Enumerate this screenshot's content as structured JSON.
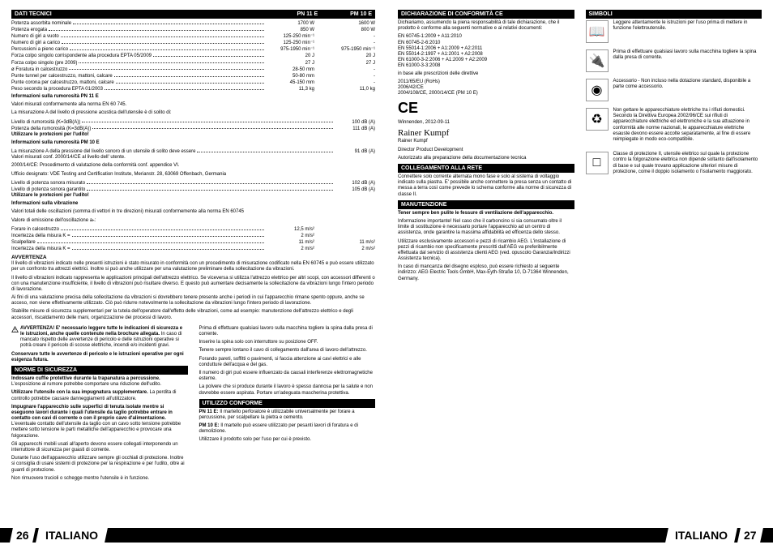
{
  "left_page": {
    "tech_header": {
      "title": "DATI TECNICI",
      "col1": "PN 11 E",
      "col2": "PM 10 E"
    },
    "specs_dual": [
      {
        "label": "Potenza assorbita nominale",
        "v1": "1700 W",
        "v2": "1600 W"
      },
      {
        "label": "Potenza erogata",
        "v1": "850 W",
        "v2": "800 W"
      },
      {
        "label": "Numero di giri a vuoto",
        "v1": "125-250 min⁻¹",
        "v2": "-"
      },
      {
        "label": "Numero di giri a carico",
        "v1": "125-250 min⁻¹",
        "v2": "-"
      },
      {
        "label": "Percussioni a pieno carico",
        "v1": "975-1950 min⁻¹",
        "v2": "975-1950 min⁻¹"
      },
      {
        "label": "Forza colpo singolo corrispondente alla procedura EPTA 05/2009",
        "v1": "20 J",
        "v2": "20 J"
      },
      {
        "label": "Forza colpo singolo (pre 2009)",
        "v1": "27 J",
        "v2": "27 J"
      },
      {
        "label": "ø Foratura in calcestruzzo",
        "v1": "28-50 mm",
        "v2": "-"
      },
      {
        "label": "Punte tunnel per calcestruzzo, mattoni, calcare",
        "v1": "50-80 mm",
        "v2": "-"
      },
      {
        "label": "Punte corona per calcestruzzo, mattoni, calcare",
        "v1": "45-150 mm",
        "v2": "-"
      },
      {
        "label": "Peso secondo la procedura EPTA 01/2003",
        "v1": "11,3 kg",
        "v2": "11,0 kg"
      }
    ],
    "noise_pn11": {
      "title": "Informazioni sulla rumorosità PN 11 E",
      "intro1": "Valori misurati conformemente alla norma EN 60 745.",
      "intro2": "La misurazione A del livello di pressione acustica dell'utensile è di solito di:",
      "rows": [
        {
          "label": "Livello di rumorosità (K=3dB(A))",
          "val": "100 dB (A)"
        },
        {
          "label": "Potenza della rumorosità (K=3dB(A))",
          "val": "111 dB (A)"
        }
      ],
      "warn": "Utilizzare le protezioni per l'udito!"
    },
    "noise_pm10": {
      "title": "Informazioni sulla rumorosità PM 10 E",
      "intro1": "La misurazione A della pressione del livello sonoro di un utensile di solito deve essere",
      "rows_a": [
        {
          "label": "",
          "val": "91 dB (A)"
        }
      ],
      "intro2": "Valori misurati conf. 2000/14/CE al livello dell' utente.",
      "intro3": "2000/14/CE: Procedimento di valutazione della conformità conf. appendice VI.",
      "intro4": "Ufficio designato: VDE Testing and Certification Institute, Merianstr. 28, 63069 Offenbach, Germania",
      "rows_b": [
        {
          "label": "Livello di potenza sonora misurato",
          "val": "102 dB (A)"
        },
        {
          "label": "Livello di potenza sonora garantito",
          "val": "105 dB (A)"
        }
      ],
      "warn": "Utilizzare le protezioni per l'udito!"
    },
    "vib": {
      "title": "Informazioni sulla vibrazione",
      "intro1": "Valori totali delle oscillazioni (somma di vettori in tre direzioni) misurati conformemente alla norma EN 60745",
      "intro2": "Valore di emissione dell'oscillazione aₕ:",
      "rows": [
        {
          "label": "Forare in calcestruzzo",
          "v1": "12,5 m/s²",
          "v2": ""
        },
        {
          "label": "Incertezza della misura K =",
          "v1": "2 m/s²",
          "v2": ""
        },
        {
          "label": "Scalpellare",
          "v1": "11 m/s²",
          "v2": "11 m/s²"
        },
        {
          "label": "Incertezza della misura K =",
          "v1": "2 m/s²",
          "v2": "2 m/s²"
        }
      ]
    },
    "avvertenza": {
      "title": "AVVERTENZA",
      "p1": "Il livello di vibrazioni indicato nelle presenti istruzioni è stato misurato in conformità con un procedimento di misurazione codificato nella EN 60745 e può essere utilizzato per un confronto tra attrezzi elettrici. Inoltre si può anche utilizzare per una valutazione preliminare della sollecitazione da vibrazioni.",
      "p2": "Il livello di vibrazioni indicato rappresenta le applicazioni principali dell'attrezzo elettrico. Se viceversa si utilizza l'attrezzo elettrico per altri scopi, con accessori differenti o con una manutenzione insufficiente, il livello di vibrazioni può risultare diverso. E questo può aumentare decisamente la sollecitazione da vibrazioni lungo l'intero periodo di lavorazione.",
      "p3": "Ai fini di una valutazione precisa della sollecitazione da vibrazioni si dovrebbero tenere presente anche i periodi in cui l'apparecchio rimane spento oppure, anche se acceso, non viene effettivamente utilizzato. Ciò può ridurre notevolmente la sollecitazione da vibrazioni lungo l'intero periodo di lavorazione.",
      "p4": "Stabilite misure di sicurezza supplementari per la tutela dell'operatore dall'effetto delle vibrazioni, come ad esempio: manutenzione dell'attrezzo elettrico e degli accessori, riscaldamento delle mani, organizzazione dei processi di lavoro."
    },
    "col_left_2": {
      "warn_title": "AVVERTENZA! E' necessario leggere tutte le indicazioni di sicurezza e le istruzioni, anche quelle contenute nella brochure allegata.",
      "warn_body": "In caso di mancato rispetto delle avvertenze di pericolo e delle istruzioni operative si potrà creare il pericolo di scosse elettriche, incendi e/o incidenti gravi.",
      "warn_keep": "Conservare tutte le avvertenze di pericolo e le istruzioni operative per ogni esigenza futura.",
      "norme_header": "NORME DI SICUREZZA",
      "n1b": "Indossare cuffie protettive durante la trapanatura a percussione.",
      "n1": "L'esposizione al rumore potrebbe comportare una riduzione dell'udito.",
      "n2b": "Utilizzare l'utensile con la sua impugnatura supplementare.",
      "n2": "La perdita di controllo potrebbe causare danneggiamenti all'utilizzatore.",
      "n3b": "Impugnare l'apparecchio sulle superfici di tenuta isolate mentre si eseguono lavori durante i quali l'utensile da taglio potrebbe entrare in contatto con cavi di corrente o con il proprio cavo d'alimentazione.",
      "n3": "L'eventuale contatto dell'utensile da taglio con un cavo sotto tensione potrebbe mettere sotto tensione le parti metalliche dell'apparecchio e provocare una folgorazione.",
      "n4": "Gli apparecchi mobili usati all'aperto devono essere collegati interponendo un interruttore di sicurezza per guasti di corrente.",
      "n5": "Durante l'uso dell'apparecchio utilizzare sempre gli occhiali di protezione. Inoltre si consiglia di usare sistemi di protezione per la respirazione e per l'udito, oltre ai guanti di protezione.",
      "n6": "Non rimuovere trucioli o schegge mentre l'utensile è in funzione."
    },
    "col_right_2": {
      "p1": "Prima di effettuare qualsiasi lavoro sulla macchina togliere la spina dalla presa di corrente.",
      "p2": "Inserire la spina solo con interruttore su posizione OFF.",
      "p3": "Tenere sempre lontano il cavo di collegamento dall'area di lavoro dell'attrezzo.",
      "p4": "Forando pareti, soffitti o pavimenti, si faccia attenzione ai cavi elettrici e alle condutture dell'acqua e del gas.",
      "p5": "Il numero di giri può essere influenzato da causali interferenze elettromagnetiche esterne.",
      "p6": "La polvere che si produce durante il lavoro è spesso dannosa per la salute e non dovrebbe essere aspirata. Portare un'adeguata mascherina protettiva.",
      "util_header": "UTILIZZO CONFORME",
      "u1b": "PN 11 E:",
      "u1": "Il martello perforatore è utilizzabile universalmente per forare a percussione, per scalpellare la pietra e cemento.",
      "u2b": "PM 10 E:",
      "u2": "Il martello può essere utilizzato per pesanti lavori di foratura e di demolizione.",
      "u3": "Utilizzare il prodotto solo per l'uso per cui è previsto."
    },
    "page_num": "26",
    "page_lang": "ITALIANO"
  },
  "right_page": {
    "decl_header": "DICHIARAZIONE DI CONFORMITÀ CE",
    "decl_body": "Dichiariamo, assumendo la piena responsabilità di tale dichiarazione, che il prodotto è conforme alla seguenti normative e ai relativi documenti:",
    "decl_standards": [
      "EN 60745-1:2009 + A11:2010",
      "EN 60745-2-6:2010",
      "EN 55014-1:2006 + A1:2009 + A2:2011",
      "EN 55014-2:1997 + A1:2001 + A2:2008",
      "EN 61000-3-2:2006 + A1:2009 + A2:2009",
      "EN 61000-3-3:2008"
    ],
    "decl_dir": "in base alle prescrizioni delle direttive",
    "decl_dirs": [
      "2011/65/EU (RoHs)",
      "2006/42/CE",
      "2004/108/CE, 2000/14/CE (PM 10 E)"
    ],
    "decl_place": "Winnenden, 2012-09-11",
    "decl_name": "Rainer Kumpf",
    "decl_role": "Director Product Development",
    "decl_auth": "Autorizzato alla preparazione della documentazione tecnica",
    "coll_header": "COLLEGAMENTO ALLA RETE",
    "coll_body": "Connettere solo corrente alternata mono fase e solo al sistema di voltaggio indicato sulla piastra. E' possibile anche connettere la presa senza un contatto di messa a terra così come prevede lo schema conforme alla norme di sicurezza di classe II.",
    "manu_header": "MANUTENZIONE",
    "manu_p1": "Tener sempre ben pulite le fessure di ventilazione dell'apparecchio.",
    "manu_p2": "Informazione importante! Nel caso che il carboncino si sia consumato oltre il limite di sostituzione è necessario portare l'apparecchio ad un centro di assistenza, onde garantire la massima affidabilità ed efficenza dello stesso.",
    "manu_p3": "Utilizzare esclusivamente accessori e pezzi di ricambio AEG. L'installazione di pezzi di ricambio non specificamente prescritti dall'AEG va preferibilmente effettuata dal servizio di assistenza clienti AEG (ved. opuscolo Garanzia/Indirizzi Assistenza tecnica).",
    "manu_p4": "In caso di mancanza del disegno esploso, può essere richiesto al seguente indirizzo: AEG Electric Tools GmbH, Max-Eyth-Straße 10, D-71364 Winnenden, Germany.",
    "sym_header": "SIMBOLI",
    "symbols": [
      {
        "icon": "📖",
        "text": "Leggere attentamente le istruzioni per l'uso prima di mettere in funzione l'elettroutensile."
      },
      {
        "icon": "🔌",
        "text": "Prima di effettuare qualsiasi lavoro sulla macchina togliere la spina dalla presa di corrente."
      },
      {
        "icon": "◉",
        "text": "Accessorio - Non incluso nella dotazione standard, disponibile a parte come accessorio."
      },
      {
        "icon": "♻",
        "text": "Non gettare le apparecchiature elettriche tra i rifiuti domestici. Secondo la Direttiva Europea 2002/96/CE sui rifiuti di apparecchiature elettriche ed elettroniche e la sua attuazione in conformità alle norme nazionali, le apparecchiature elettriche esauste devono essere accolte separatamente, al fine di essere reimpiegate in modo eco-compatibile."
      },
      {
        "icon": "□",
        "text": "Classe di protezione II, utensile elettrico sul quale la protezione contro la folgorazione elettrica non dipende soltanto dall'isolamento di base e sul quale trovano applicazione ulteriori misure di protezione, come il doppio isolamento o l'isolamento maggiorato."
      }
    ],
    "page_num": "27",
    "page_lang": "ITALIANO"
  }
}
